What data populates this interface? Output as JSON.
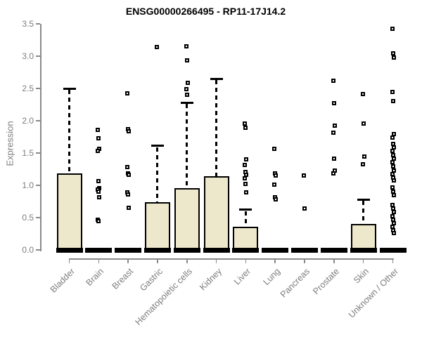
{
  "chart_data": {
    "type": "boxplot",
    "title": "ENSG00000266495 - RP11-17J14.2",
    "ylabel": "Expression",
    "ylim": [
      0,
      3.5
    ],
    "yticks": [
      0.0,
      0.5,
      1.0,
      1.5,
      2.0,
      2.5,
      3.0,
      3.5
    ],
    "grid": false,
    "legend": "none",
    "axis_color": "#8a8a8a",
    "text_color": "#7d7d7d",
    "title_color": "#000000",
    "box_fill": "#EDE8CB",
    "box_stroke": "#000000",
    "outlier_fill": "#ffffff",
    "outlier_stroke": "#000000",
    "categories": [
      "Bladder",
      "Brain",
      "Breast",
      "Gastric",
      "Hematopoietic cells",
      "Kidney",
      "Liver",
      "Lung",
      "Pancreas",
      "Prostate",
      "Skin",
      "Unknown / Other"
    ],
    "series": [
      {
        "name": "Bladder",
        "q1": 0.0,
        "median": 0.0,
        "q3": 1.18,
        "whisker_low": 0.0,
        "whisker_high": 2.5,
        "outliers": []
      },
      {
        "name": "Brain",
        "q1": 0.0,
        "median": 0.0,
        "q3": 0.0,
        "whisker_low": 0.0,
        "whisker_high": 0.0,
        "outliers": [
          1.86,
          1.73,
          1.57,
          1.53,
          1.06,
          0.96,
          0.93,
          0.9,
          0.82,
          0.47,
          0.45
        ]
      },
      {
        "name": "Breast",
        "q1": 0.0,
        "median": 0.0,
        "q3": 0.0,
        "whisker_low": 0.0,
        "whisker_high": 0.0,
        "outliers": [
          2.42,
          1.87,
          1.84,
          1.28,
          1.18,
          1.16,
          0.89,
          0.86,
          0.65
        ]
      },
      {
        "name": "Gastric",
        "q1": 0.0,
        "median": 0.0,
        "q3": 0.74,
        "whisker_low": 0.0,
        "whisker_high": 1.61,
        "outliers": [
          3.14
        ]
      },
      {
        "name": "Hematopoietic cells",
        "q1": 0.0,
        "median": 0.0,
        "q3": 0.96,
        "whisker_low": 0.0,
        "whisker_high": 2.28,
        "outliers": [
          3.15,
          2.93,
          2.59,
          2.49,
          2.4
        ]
      },
      {
        "name": "Kidney",
        "q1": 0.0,
        "median": 0.0,
        "q3": 1.14,
        "whisker_low": 0.0,
        "whisker_high": 2.65,
        "outliers": []
      },
      {
        "name": "Liver",
        "q1": 0.0,
        "median": 0.0,
        "q3": 0.36,
        "whisker_low": 0.0,
        "whisker_high": 0.62,
        "outliers": [
          1.96,
          1.89,
          1.4,
          1.31,
          1.21,
          1.16,
          1.11,
          1.02,
          0.89
        ]
      },
      {
        "name": "Lung",
        "q1": 0.0,
        "median": 0.0,
        "q3": 0.0,
        "whisker_low": 0.0,
        "whisker_high": 0.0,
        "outliers": [
          1.57,
          1.18,
          1.15,
          1.01,
          0.81,
          0.78
        ]
      },
      {
        "name": "Pancreas",
        "q1": 0.0,
        "median": 0.0,
        "q3": 0.0,
        "whisker_low": 0.0,
        "whisker_high": 0.0,
        "outliers": [
          1.15,
          0.64
        ]
      },
      {
        "name": "Prostate",
        "q1": 0.0,
        "median": 0.0,
        "q3": 0.0,
        "whisker_low": 0.0,
        "whisker_high": 0.0,
        "outliers": [
          2.62,
          2.27,
          1.92,
          1.82,
          1.41,
          1.23,
          1.19
        ]
      },
      {
        "name": "Skin",
        "q1": 0.0,
        "median": 0.0,
        "q3": 0.4,
        "whisker_low": 0.0,
        "whisker_high": 0.78,
        "outliers": [
          2.41,
          1.96,
          1.45,
          1.33
        ]
      },
      {
        "name": "Unknown / Other",
        "q1": 0.0,
        "median": 0.0,
        "q3": 0.0,
        "whisker_low": 0.0,
        "whisker_high": 0.0,
        "outliers": [
          3.42,
          3.04,
          2.98,
          2.45,
          2.3,
          1.79,
          1.74,
          1.64,
          1.59,
          1.53,
          1.47,
          1.41,
          1.36,
          1.29,
          1.23,
          1.17,
          1.12,
          1.08,
          0.97,
          0.9,
          0.85,
          0.7,
          0.64,
          0.59,
          0.52,
          0.47,
          0.41,
          0.36,
          0.3,
          0.26
        ]
      }
    ]
  }
}
